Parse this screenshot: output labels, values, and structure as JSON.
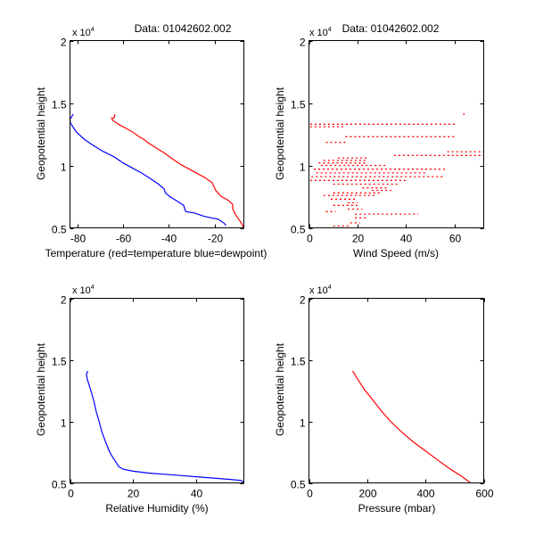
{
  "figure": {
    "background": "#ffffff"
  },
  "chart_data": [
    {
      "type": "line",
      "title": "Data: 01042602.002",
      "xlabel": "Temperature (red=temperature blue=dewpoint)",
      "ylabel": "Geopotential height",
      "exponent_label": "x 10",
      "exponent_power": "4",
      "xlim": [
        -83.2,
        -7.2
      ],
      "ylim": [
        5000,
        20000
      ],
      "xticks": [
        -80,
        -60,
        -40,
        -20
      ],
      "xtick_labels": [
        "-80",
        "-60",
        "-40",
        "-20"
      ],
      "yticks": [
        5000,
        10000,
        15000,
        20000
      ],
      "ytick_labels": [
        "0.5",
        "1",
        "1.5",
        "2"
      ],
      "grid": false,
      "series": [
        {
          "name": "temperature",
          "color": "#ff0000",
          "x": [
            -7.3,
            -8.0,
            -9.5,
            -11.0,
            -12.0,
            -12.2,
            -14.0,
            -17.0,
            -19.5,
            -21.0,
            -24.0,
            -27.0,
            -31.0,
            -35.0,
            -39.0,
            -42.0,
            -45.5,
            -49.0,
            -51.0,
            -53.0,
            -56.0,
            -59.0,
            -62.0,
            -64.5,
            -65.0,
            -64.0,
            -63.5
          ],
          "y": [
            5000,
            5300,
            5700,
            6100,
            6500,
            6900,
            7200,
            7500,
            8000,
            8600,
            9000,
            9300,
            9700,
            10100,
            10600,
            11000,
            11400,
            11800,
            12100,
            12300,
            12700,
            13000,
            13300,
            13600,
            13800,
            13800,
            14100
          ]
        },
        {
          "name": "dewpoint",
          "color": "#0000ff",
          "x": [
            -15.0,
            -16.0,
            -18.5,
            -21.5,
            -25.0,
            -29.0,
            -32.5,
            -33.0,
            -33.5,
            -36.0,
            -39.5,
            -41.5,
            -42.0,
            -44.5,
            -48.5,
            -52.0,
            -56.0,
            -60.0,
            -64.0,
            -68.5,
            -73.0,
            -77.0,
            -80.5,
            -83.0,
            -83.2,
            -82.5,
            -81.8
          ],
          "y": [
            5200,
            5400,
            5700,
            5800,
            5950,
            6200,
            6300,
            6500,
            6800,
            7100,
            7500,
            7800,
            8100,
            8500,
            9000,
            9400,
            9800,
            10200,
            10700,
            11100,
            11600,
            12100,
            12700,
            13400,
            13700,
            13900,
            14100
          ]
        }
      ]
    },
    {
      "type": "scatter",
      "title": "Data: 01042602.002",
      "xlabel": "Wind Speed (m/s)",
      "ylabel": "Geopotential height",
      "exponent_label": "x 10",
      "exponent_power": "4",
      "xlim": [
        0,
        72
      ],
      "ylim": [
        5000,
        20000
      ],
      "xticks": [
        0,
        20,
        40,
        60
      ],
      "xtick_labels": [
        "0",
        "20",
        "40",
        "60"
      ],
      "yticks": [
        5000,
        10000,
        15000,
        20000
      ],
      "ytick_labels": [
        "0.5",
        "1",
        "1.5",
        "2"
      ],
      "grid": false,
      "series": [
        {
          "name": "wind-speed",
          "color": "#ff0000",
          "bands": [
            {
              "y": 14100,
              "x0": 63.5,
              "x1": 64.2
            },
            {
              "y": 13300,
              "x0": 0.5,
              "x1": 60
            },
            {
              "y": 13100,
              "x0": 0.5,
              "x1": 15
            },
            {
              "y": 12300,
              "x0": 15,
              "x1": 60
            },
            {
              "y": 11850,
              "x0": 7,
              "x1": 16
            },
            {
              "y": 11100,
              "x0": 57,
              "x1": 72
            },
            {
              "y": 10800,
              "x0": 35,
              "x1": 72
            },
            {
              "y": 10600,
              "x0": 12,
              "x1": 24
            },
            {
              "y": 10400,
              "x0": 6,
              "x1": 24
            },
            {
              "y": 10200,
              "x0": 4,
              "x1": 24
            },
            {
              "y": 10000,
              "x0": 5,
              "x1": 32
            },
            {
              "y": 9700,
              "x0": 2,
              "x1": 57
            },
            {
              "y": 9400,
              "x0": 3,
              "x1": 48
            },
            {
              "y": 9100,
              "x0": 1,
              "x1": 56
            },
            {
              "y": 8800,
              "x0": 0.5,
              "x1": 40
            },
            {
              "y": 8500,
              "x0": 10,
              "x1": 37
            },
            {
              "y": 8200,
              "x0": 22,
              "x1": 33
            },
            {
              "y": 8000,
              "x0": 26,
              "x1": 34
            },
            {
              "y": 7800,
              "x0": 10,
              "x1": 30
            },
            {
              "y": 7600,
              "x0": 6,
              "x1": 28
            },
            {
              "y": 7300,
              "x0": 9,
              "x1": 19
            },
            {
              "y": 7000,
              "x0": 16,
              "x1": 20
            },
            {
              "y": 6800,
              "x0": 10,
              "x1": 21
            },
            {
              "y": 6500,
              "x0": 16,
              "x1": 22
            },
            {
              "y": 6300,
              "x0": 7,
              "x1": 11
            },
            {
              "y": 6100,
              "x0": 19,
              "x1": 45
            },
            {
              "y": 5800,
              "x0": 19,
              "x1": 24
            },
            {
              "y": 5400,
              "x0": 17,
              "x1": 21
            },
            {
              "y": 5150,
              "x0": 10,
              "x1": 17
            }
          ]
        }
      ]
    },
    {
      "type": "line",
      "title": "",
      "xlabel": "Relative Humidity (%)",
      "ylabel": "Geopotential height",
      "exponent_label": "x 10",
      "exponent_power": "4",
      "xlim": [
        0,
        55
      ],
      "ylim": [
        5000,
        20000
      ],
      "xticks": [
        0,
        20,
        40
      ],
      "xtick_labels": [
        "0",
        "20",
        "40"
      ],
      "yticks": [
        5000,
        10000,
        15000,
        20000
      ],
      "ytick_labels": [
        "0.5",
        "1",
        "1.5",
        "2"
      ],
      "grid": false,
      "series": [
        {
          "name": "relative-humidity",
          "color": "#0000ff",
          "x": [
            55,
            54,
            50,
            45,
            40,
            35,
            30,
            25,
            20,
            17,
            15.5,
            15,
            14,
            13,
            12.2,
            11.8,
            11,
            10,
            9.2,
            8.3,
            7.5,
            6.5,
            5.5,
            5.2,
            5.6
          ],
          "y": [
            5050,
            5200,
            5300,
            5400,
            5500,
            5600,
            5700,
            5800,
            5950,
            6100,
            6300,
            6500,
            6900,
            7300,
            7700,
            8000,
            8500,
            9200,
            10000,
            10800,
            11700,
            12600,
            13400,
            13800,
            14100
          ]
        }
      ]
    },
    {
      "type": "line",
      "title": "",
      "xlabel": "Pressure (mbar)",
      "ylabel": "Geopotential height",
      "exponent_label": "x 10",
      "exponent_power": "4",
      "xlim": [
        0,
        600
      ],
      "ylim": [
        5000,
        20000
      ],
      "xticks": [
        0,
        200,
        400,
        600
      ],
      "xtick_labels": [
        "0",
        "200",
        "400",
        "600"
      ],
      "yticks": [
        5000,
        10000,
        15000,
        20000
      ],
      "ytick_labels": [
        "0.5",
        "1",
        "1.5",
        "2"
      ],
      "grid": false,
      "series": [
        {
          "name": "pressure",
          "color": "#ff0000",
          "x": [
            555,
            520,
            480,
            440,
            400,
            360,
            320,
            280,
            250,
            220,
            190,
            165,
            150
          ],
          "y": [
            5000,
            5600,
            6200,
            6900,
            7600,
            8300,
            9100,
            10000,
            10800,
            11700,
            12600,
            13500,
            14100
          ]
        }
      ]
    }
  ]
}
